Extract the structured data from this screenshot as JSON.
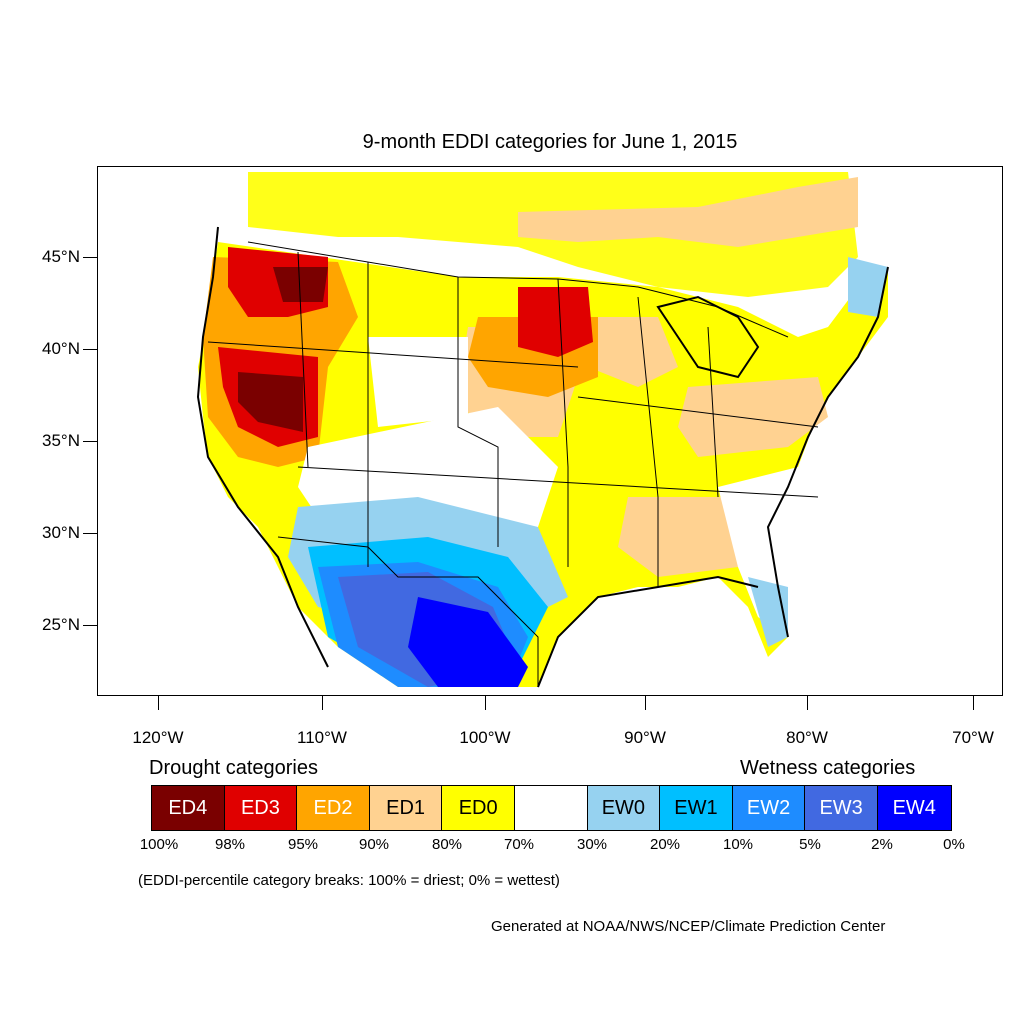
{
  "title": "9-month EDDI categories for June 1, 2015",
  "lat_labels": [
    "45°N",
    "40°N",
    "35°N",
    "30°N",
    "25°N"
  ],
  "lon_labels": [
    "120°W",
    "110°W",
    "100°W",
    "90°W",
    "80°W",
    "70°W"
  ],
  "legend": {
    "drought_heading": "Drought categories",
    "wetness_heading": "Wetness categories",
    "categories": [
      {
        "label": "ED4",
        "color": "#7a0000",
        "text_color": "#ffffff"
      },
      {
        "label": "ED3",
        "color": "#e00000",
        "text_color": "#ffffff"
      },
      {
        "label": "ED2",
        "color": "#ffa500",
        "text_color": "#ffffff"
      },
      {
        "label": "ED1",
        "color": "#ffd291",
        "text_color": "#000000"
      },
      {
        "label": "ED0",
        "color": "#ffff00",
        "text_color": "#000000"
      },
      {
        "label": "",
        "color": "#ffffff",
        "text_color": "#000000"
      },
      {
        "label": "EW0",
        "color": "#96d2f0",
        "text_color": "#000000"
      },
      {
        "label": "EW1",
        "color": "#00bfff",
        "text_color": "#000000"
      },
      {
        "label": "EW2",
        "color": "#1e8cff",
        "text_color": "#ffffff"
      },
      {
        "label": "EW3",
        "color": "#4169e1",
        "text_color": "#ffffff"
      },
      {
        "label": "EW4",
        "color": "#0000ff",
        "text_color": "#ffffff"
      }
    ],
    "breaks": [
      "100%",
      "98%",
      "95%",
      "90%",
      "80%",
      "70%",
      "30%",
      "20%",
      "10%",
      "5%",
      "2%",
      "0%"
    ]
  },
  "note": "(EDDI-percentile category breaks: 100% = driest; 0% = wettest)",
  "credit": "Generated at NOAA/NWS/NCEP/Climate Prediction Center"
}
